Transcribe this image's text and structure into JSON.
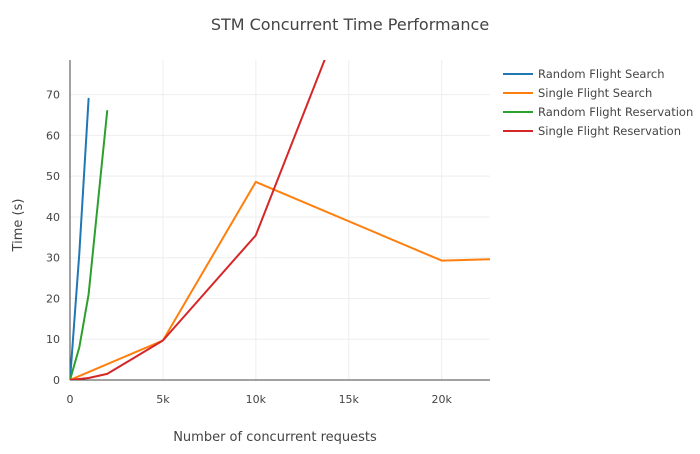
{
  "chart_data": {
    "type": "line",
    "title": "STM Concurrent Time Performance",
    "xlabel": "Number of concurrent requests",
    "ylabel": "Time (s)",
    "xlim": [
      0,
      22600
    ],
    "ylim": [
      0,
      78.5
    ],
    "grid": true,
    "legend_position": "top-right",
    "x_ticks": [
      {
        "value": 0,
        "label": "0"
      },
      {
        "value": 5000,
        "label": "5k"
      },
      {
        "value": 10000,
        "label": "10k"
      },
      {
        "value": 15000,
        "label": "15k"
      },
      {
        "value": 20000,
        "label": "20k"
      }
    ],
    "y_ticks": [
      {
        "value": 0,
        "label": "0"
      },
      {
        "value": 10,
        "label": "10"
      },
      {
        "value": 20,
        "label": "20"
      },
      {
        "value": 30,
        "label": "30"
      },
      {
        "value": 40,
        "label": "40"
      },
      {
        "value": 50,
        "label": "50"
      },
      {
        "value": 60,
        "label": "60"
      },
      {
        "value": 70,
        "label": "70"
      }
    ],
    "series": [
      {
        "name": "Random Flight Search",
        "color": "#1f77b4",
        "points": [
          [
            0,
            0
          ],
          [
            500,
            31
          ],
          [
            1000,
            69
          ]
        ]
      },
      {
        "name": "Single Flight Search",
        "color": "#ff7f0e",
        "points": [
          [
            0,
            0
          ],
          [
            5000,
            9.7
          ],
          [
            10000,
            48.6
          ],
          [
            20000,
            29.3
          ],
          [
            22600,
            29.6
          ]
        ]
      },
      {
        "name": "Random Flight Reservation",
        "color": "#2ca02c",
        "points": [
          [
            0,
            0
          ],
          [
            500,
            8
          ],
          [
            1000,
            21
          ],
          [
            2000,
            66
          ]
        ]
      },
      {
        "name": "Single Flight Reservation",
        "color": "#d62728",
        "points": [
          [
            0,
            0
          ],
          [
            1000,
            0.5
          ],
          [
            2000,
            1.5
          ],
          [
            5000,
            9.7
          ],
          [
            10000,
            35.5
          ],
          [
            14000,
            82
          ]
        ]
      }
    ]
  }
}
